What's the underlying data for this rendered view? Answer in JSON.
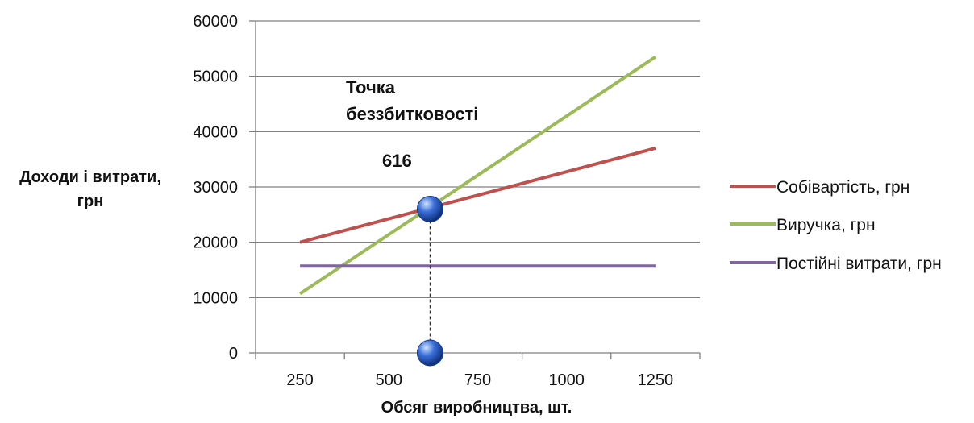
{
  "colors": {
    "cost": "#c0504d",
    "revenue": "#9bbb59",
    "fixed": "#8064a2",
    "grid": "#7f7f7f",
    "axis": "#7f7f7f",
    "marker": "#3a6fd8"
  },
  "chart_data": {
    "type": "line",
    "title": "",
    "xlabel": "Обсяг виробництва, шт.",
    "ylabel_lines": [
      "Доходи і витрати,",
      "грн"
    ],
    "categories": [
      250,
      500,
      750,
      1000,
      1250
    ],
    "xlim": [
      125,
      1375
    ],
    "ylim": [
      0,
      60000
    ],
    "yticks": [
      0,
      10000,
      20000,
      30000,
      40000,
      50000,
      60000
    ],
    "grid": "horizontal",
    "legend_position": "right",
    "series": [
      {
        "name": "Собівартість, грн",
        "color": "#c0504d",
        "points": [
          [
            250,
            20000
          ],
          [
            1250,
            37000
          ]
        ]
      },
      {
        "name": "Виручка, грн",
        "color": "#9bbb59",
        "points": [
          [
            250,
            10700
          ],
          [
            1250,
            53500
          ]
        ]
      },
      {
        "name": "Постійні витрати, грн",
        "color": "#8064a2",
        "points": [
          [
            250,
            15700
          ],
          [
            1250,
            15700
          ]
        ]
      }
    ],
    "breakeven": {
      "label_lines": [
        "Точка",
        "беззбитковості"
      ],
      "value_label": "616",
      "x": 616,
      "y": 26000
    }
  }
}
